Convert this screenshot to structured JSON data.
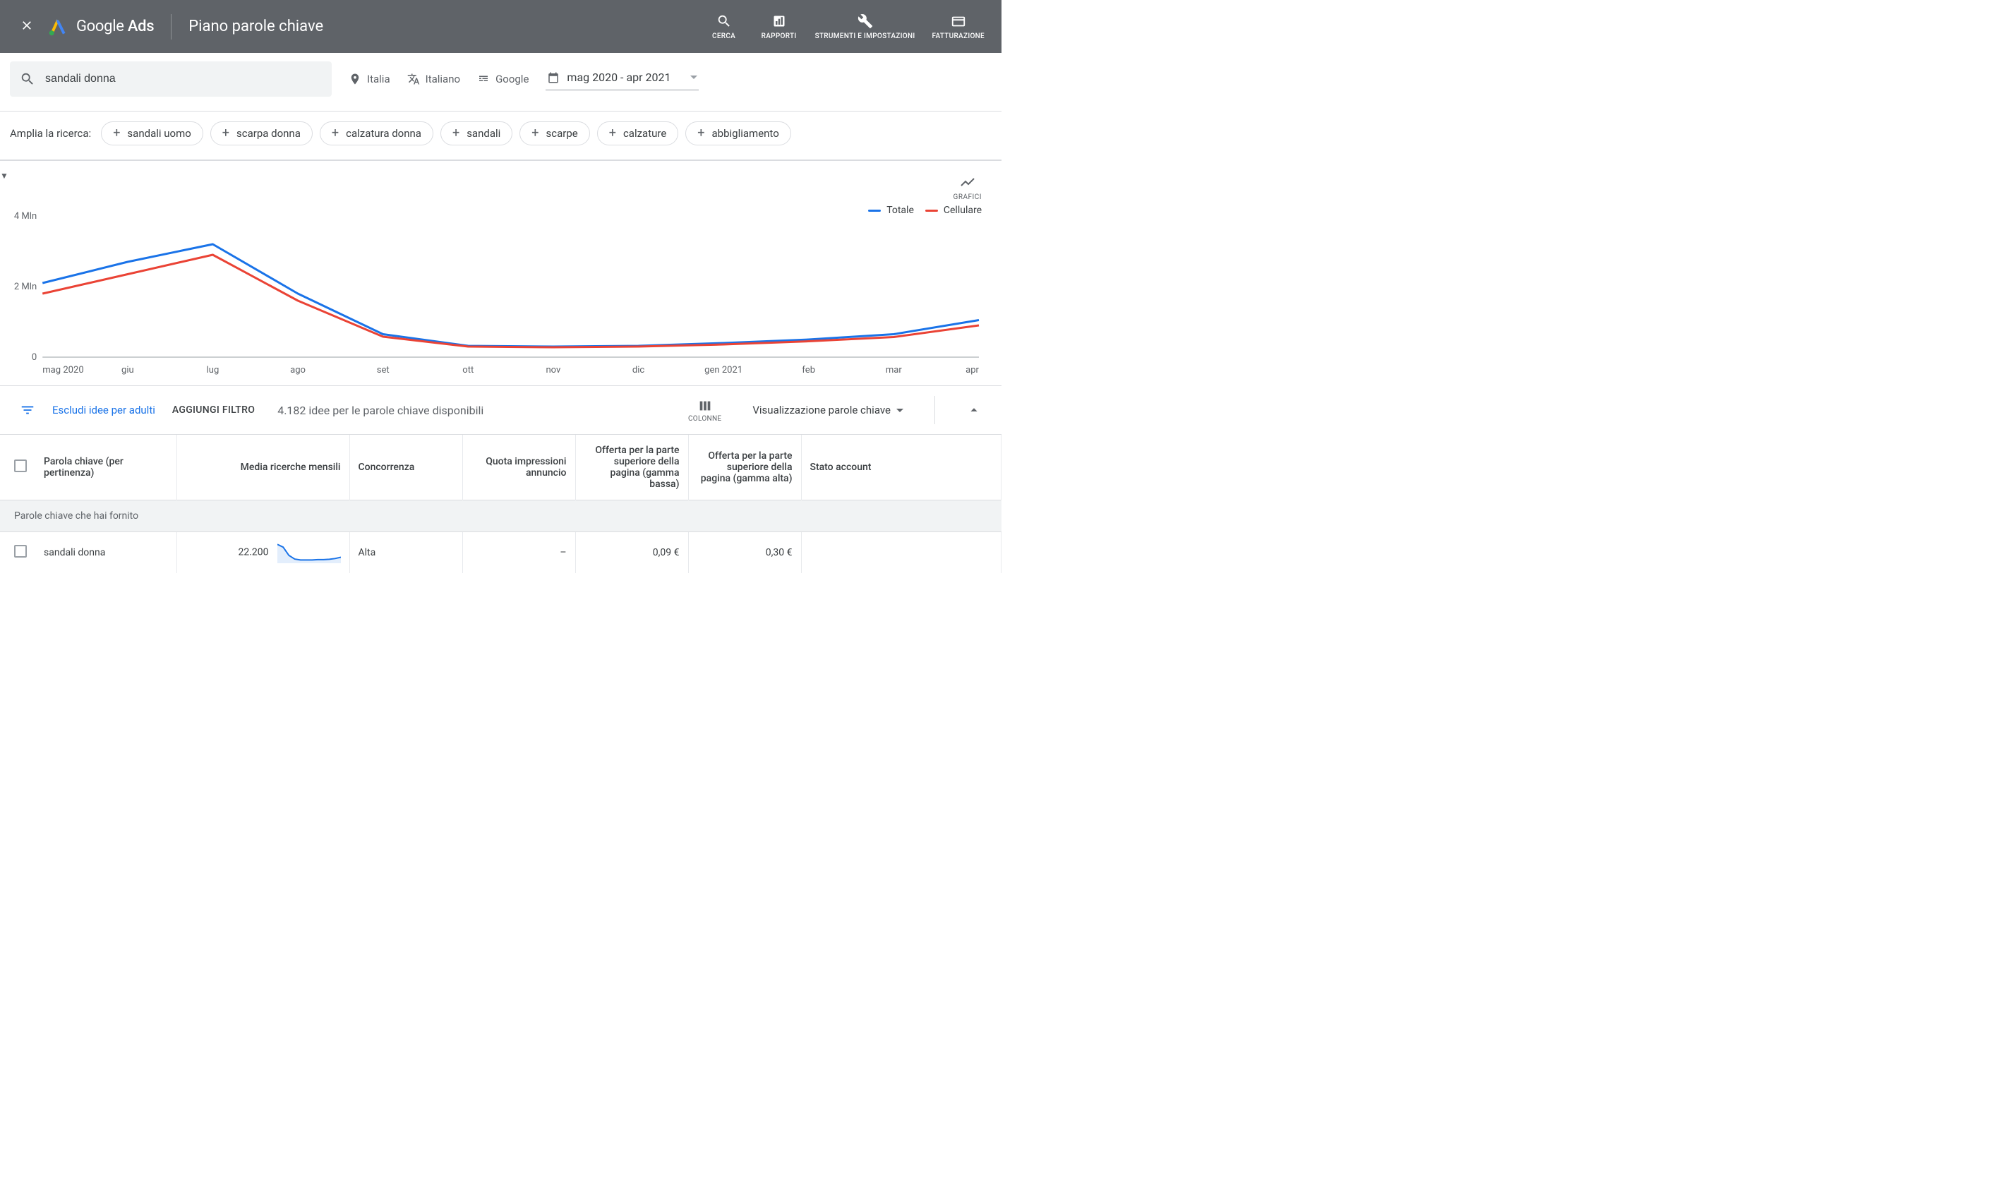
{
  "header": {
    "logo_text_1": "Google",
    "logo_text_2": "Ads",
    "page_title": "Piano parole chiave",
    "actions": {
      "cerca": "CERCA",
      "rapporti": "RAPPORTI",
      "strumenti": "STRUMENTI E IMPOSTAZIONI",
      "fatturazione": "FATTURAZIONE"
    }
  },
  "filters": {
    "search_value": "sandali donna",
    "location": "Italia",
    "language": "Italiano",
    "network": "Google",
    "date_range": "mag 2020 - apr 2021"
  },
  "chips": {
    "label": "Amplia la ricerca:",
    "items": [
      "sandali uomo",
      "scarpa donna",
      "calzatura donna",
      "sandali",
      "scarpe",
      "calzature",
      "abbigliamento"
    ]
  },
  "chart": {
    "corner_label": "GRAFICI",
    "legend": {
      "totale": "Totale",
      "cellulare": "Cellulare"
    },
    "colors": {
      "totale": "#1a73e8",
      "cellulare": "#ea4335",
      "axis": "#9aa0a6",
      "text": "#5f6368"
    },
    "y_ticks": [
      {
        "value": 0,
        "label": "0"
      },
      {
        "value": 2000000,
        "label": "2 Mln"
      },
      {
        "value": 4000000,
        "label": "4 Mln"
      }
    ],
    "y_max": 4000000,
    "x_labels": [
      "mag 2020",
      "giu",
      "lug",
      "ago",
      "set",
      "ott",
      "nov",
      "dic",
      "gen 2021",
      "feb",
      "mar",
      "apr"
    ],
    "series": {
      "totale": [
        2100000,
        2700000,
        3200000,
        1800000,
        650000,
        320000,
        300000,
        320000,
        400000,
        500000,
        650000,
        1050000
      ],
      "cellulare": [
        1800000,
        2350000,
        2900000,
        1600000,
        580000,
        300000,
        280000,
        300000,
        360000,
        450000,
        570000,
        900000
      ]
    },
    "line_width": 3
  },
  "table_filter": {
    "exclude_adult": "Escludi idee per adulti",
    "add_filter": "AGGIUNGI FILTRO",
    "ideas_count": "4.182 idee per le parole chiave disponibili",
    "columns_label": "COLONNE",
    "view_label": "Visualizzazione parole chiave"
  },
  "table": {
    "columns": {
      "keyword": "Parola chiave (per pertinenza)",
      "avg_searches": "Media ricerche mensili",
      "competition": "Concorrenza",
      "impression_share": "Quota impressioni annuncio",
      "bid_low": "Offerta per la parte superiore della pagina (gamma bassa)",
      "bid_high": "Offerta per la parte superiore della pagina (gamma alta)",
      "account_status": "Stato account"
    },
    "section_label": "Parole chiave che hai fornito",
    "rows": [
      {
        "keyword": "sandali donna",
        "avg_searches": "22.200",
        "competition": "Alta",
        "impression_share": "–",
        "bid_low": "0,09 €",
        "bid_high": "0,30 €",
        "sparkline": [
          0.95,
          0.8,
          0.35,
          0.15,
          0.1,
          0.1,
          0.1,
          0.12,
          0.12,
          0.14,
          0.18,
          0.25
        ],
        "sparkline_color": "#1a73e8"
      }
    ]
  }
}
